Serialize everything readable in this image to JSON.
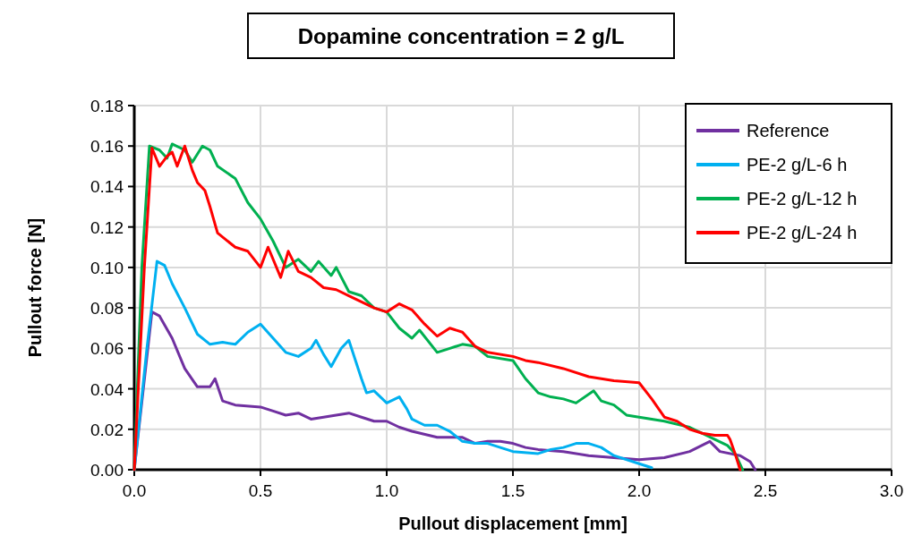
{
  "chart_data": {
    "type": "line",
    "title": "Dopamine concentration = 2 g/L",
    "xlabel": "Pullout displacement [mm]",
    "ylabel": "Pullout force [N]",
    "xlim": [
      0,
      3
    ],
    "xticks": [
      {
        "value": 0,
        "label": "0.0"
      },
      {
        "value": 0.5,
        "label": "0.5"
      },
      {
        "value": 1,
        "label": "1.0"
      },
      {
        "value": 1.5,
        "label": "1.5"
      },
      {
        "value": 2,
        "label": "2.0"
      },
      {
        "value": 2.5,
        "label": "2.5"
      },
      {
        "value": 3,
        "label": "3.0"
      }
    ],
    "ylim": [
      0,
      0.18
    ],
    "yticks": [
      {
        "value": 0,
        "label": "0.00"
      },
      {
        "value": 0.02,
        "label": "0.02"
      },
      {
        "value": 0.04,
        "label": "0.04"
      },
      {
        "value": 0.06,
        "label": "0.06"
      },
      {
        "value": 0.08,
        "label": "0.08"
      },
      {
        "value": 0.1,
        "label": "0.10"
      },
      {
        "value": 0.12,
        "label": "0.12"
      },
      {
        "value": 0.14,
        "label": "0.14"
      },
      {
        "value": 0.16,
        "label": "0.16"
      },
      {
        "value": 0.18,
        "label": "0.18"
      }
    ],
    "grid": true,
    "legend": "top right",
    "marker": "none",
    "line_style": "solid",
    "series": [
      {
        "name": "Reference",
        "color": "#7030a0",
        "x": [
          0,
          0.07,
          0.1,
          0.15,
          0.2,
          0.25,
          0.3,
          0.32,
          0.35,
          0.4,
          0.5,
          0.55,
          0.6,
          0.65,
          0.7,
          0.75,
          0.8,
          0.85,
          0.9,
          0.95,
          1.0,
          1.05,
          1.1,
          1.2,
          1.3,
          1.35,
          1.4,
          1.45,
          1.5,
          1.55,
          1.6,
          1.7,
          1.8,
          1.9,
          2.0,
          2.1,
          2.2,
          2.28,
          2.32,
          2.4,
          2.44,
          2.46
        ],
        "values": [
          0,
          0.078,
          0.076,
          0.065,
          0.05,
          0.041,
          0.041,
          0.045,
          0.034,
          0.032,
          0.031,
          0.029,
          0.027,
          0.028,
          0.025,
          0.026,
          0.027,
          0.028,
          0.026,
          0.024,
          0.024,
          0.021,
          0.019,
          0.016,
          0.016,
          0.013,
          0.014,
          0.014,
          0.013,
          0.011,
          0.01,
          0.009,
          0.007,
          0.006,
          0.005,
          0.006,
          0.009,
          0.014,
          0.009,
          0.007,
          0.004,
          0
        ]
      },
      {
        "name": "PE-2 g/L-6 h",
        "color": "#00b0f0",
        "x": [
          0,
          0.05,
          0.09,
          0.12,
          0.15,
          0.2,
          0.25,
          0.3,
          0.35,
          0.4,
          0.45,
          0.5,
          0.55,
          0.6,
          0.65,
          0.7,
          0.72,
          0.75,
          0.78,
          0.82,
          0.85,
          0.9,
          0.92,
          0.95,
          1.0,
          1.05,
          1.08,
          1.1,
          1.15,
          1.2,
          1.25,
          1.3,
          1.35,
          1.4,
          1.5,
          1.6,
          1.65,
          1.7,
          1.75,
          1.8,
          1.85,
          1.9,
          2.0,
          2.05
        ],
        "values": [
          0,
          0.06,
          0.103,
          0.101,
          0.092,
          0.08,
          0.067,
          0.062,
          0.063,
          0.062,
          0.068,
          0.072,
          0.065,
          0.058,
          0.056,
          0.06,
          0.064,
          0.057,
          0.051,
          0.06,
          0.064,
          0.045,
          0.038,
          0.039,
          0.033,
          0.036,
          0.03,
          0.025,
          0.022,
          0.022,
          0.019,
          0.014,
          0.013,
          0.013,
          0.009,
          0.008,
          0.01,
          0.011,
          0.013,
          0.013,
          0.011,
          0.007,
          0.003,
          0.001
        ]
      },
      {
        "name": "PE-2 g/L-12 h",
        "color": "#00b050",
        "x": [
          0,
          0.03,
          0.06,
          0.1,
          0.13,
          0.15,
          0.2,
          0.23,
          0.27,
          0.3,
          0.33,
          0.4,
          0.45,
          0.5,
          0.55,
          0.6,
          0.65,
          0.7,
          0.73,
          0.78,
          0.8,
          0.85,
          0.9,
          0.95,
          1.0,
          1.05,
          1.1,
          1.13,
          1.2,
          1.25,
          1.3,
          1.35,
          1.4,
          1.5,
          1.55,
          1.6,
          1.65,
          1.7,
          1.75,
          1.82,
          1.85,
          1.9,
          1.95,
          2.0,
          2.1,
          2.2,
          2.3,
          2.35,
          2.38,
          2.41
        ],
        "values": [
          0,
          0.1,
          0.16,
          0.158,
          0.154,
          0.161,
          0.158,
          0.152,
          0.16,
          0.158,
          0.15,
          0.144,
          0.132,
          0.124,
          0.113,
          0.1,
          0.104,
          0.098,
          0.103,
          0.096,
          0.1,
          0.088,
          0.086,
          0.08,
          0.078,
          0.07,
          0.065,
          0.069,
          0.058,
          0.06,
          0.062,
          0.061,
          0.056,
          0.054,
          0.045,
          0.038,
          0.036,
          0.035,
          0.033,
          0.039,
          0.034,
          0.032,
          0.027,
          0.026,
          0.024,
          0.021,
          0.015,
          0.012,
          0.008,
          0
        ]
      },
      {
        "name": "PE-2 g/L-24 h",
        "color": "#ff0000",
        "x": [
          0,
          0.04,
          0.07,
          0.1,
          0.13,
          0.15,
          0.17,
          0.2,
          0.23,
          0.25,
          0.28,
          0.3,
          0.33,
          0.4,
          0.45,
          0.5,
          0.53,
          0.58,
          0.61,
          0.65,
          0.7,
          0.75,
          0.8,
          0.85,
          0.9,
          0.95,
          1.0,
          1.05,
          1.1,
          1.15,
          1.2,
          1.25,
          1.3,
          1.35,
          1.4,
          1.5,
          1.55,
          1.6,
          1.7,
          1.8,
          1.9,
          2.0,
          2.05,
          2.1,
          2.15,
          2.2,
          2.25,
          2.3,
          2.35,
          2.36,
          2.38,
          2.4
        ],
        "values": [
          0,
          0.1,
          0.159,
          0.15,
          0.155,
          0.157,
          0.15,
          0.16,
          0.148,
          0.142,
          0.138,
          0.13,
          0.117,
          0.11,
          0.108,
          0.1,
          0.11,
          0.095,
          0.108,
          0.098,
          0.095,
          0.09,
          0.089,
          0.086,
          0.083,
          0.08,
          0.078,
          0.082,
          0.079,
          0.072,
          0.066,
          0.07,
          0.068,
          0.061,
          0.058,
          0.056,
          0.054,
          0.053,
          0.05,
          0.046,
          0.044,
          0.043,
          0.035,
          0.026,
          0.024,
          0.02,
          0.018,
          0.017,
          0.017,
          0.015,
          0.008,
          0
        ]
      }
    ]
  }
}
